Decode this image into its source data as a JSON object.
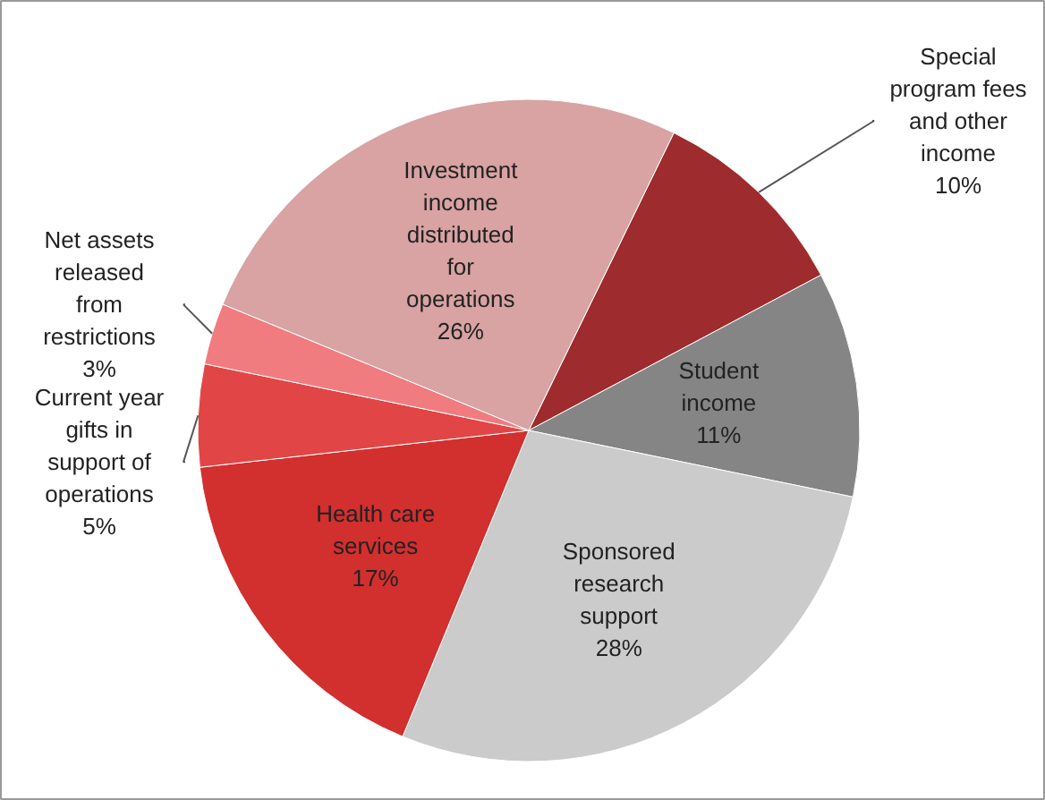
{
  "chart_data": {
    "type": "pie",
    "categories": [
      "Special program fees and other income",
      "Student income",
      "Sponsored research support",
      "Health care services",
      "Current year gifts in support of operations",
      "Net assets released from restrictions",
      "Investment income distributed for operations"
    ],
    "values": [
      10,
      11,
      28,
      17,
      5,
      3,
      26
    ],
    "colors": [
      "#9e2b2d",
      "#858585",
      "#cbcbcb",
      "#d22f2f",
      "#e24545",
      "#f07c80",
      "#d9a3a3"
    ],
    "value_labels": [
      "10%",
      "11%",
      "28%",
      "17%",
      "5%",
      "3%",
      "26%"
    ]
  }
}
